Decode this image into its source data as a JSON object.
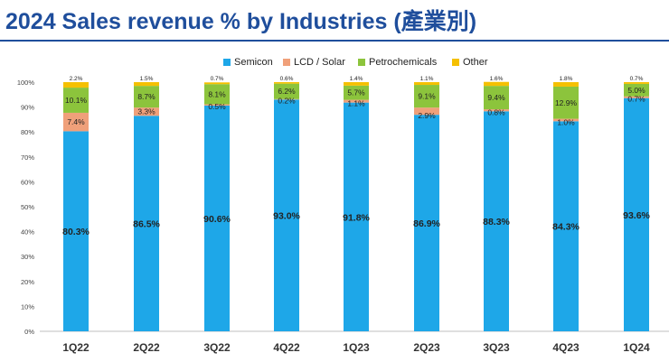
{
  "title": "2024 Sales revenue % by Industries (產業別)",
  "chart_data": {
    "type": "bar",
    "stacked": true,
    "categories": [
      "1Q22",
      "2Q22",
      "3Q22",
      "4Q22",
      "1Q23",
      "2Q23",
      "3Q23",
      "4Q23",
      "1Q24"
    ],
    "series": [
      {
        "name": "Semicon",
        "color": "#1ea7e8",
        "values": [
          80.3,
          86.5,
          90.6,
          93.0,
          91.8,
          86.9,
          88.3,
          84.3,
          93.6
        ],
        "labels": [
          "80.3%",
          "86.5%",
          "90.6%",
          "93.0%",
          "91.8%",
          "86.9%",
          "88.3%",
          "84.3%",
          "93.6%"
        ]
      },
      {
        "name": "LCD / Solar",
        "color": "#f0a07a",
        "values": [
          7.4,
          3.3,
          0.5,
          0.2,
          1.1,
          2.9,
          0.8,
          1.0,
          0.7
        ],
        "labels": [
          "7.4%",
          "3.3%",
          "0.5%",
          "0.2%",
          "1.1%",
          "2.9%",
          "0.8%",
          "1.0%",
          "0.7%"
        ]
      },
      {
        "name": "Petrochemicals",
        "color": "#8cc43c",
        "values": [
          10.1,
          8.7,
          8.1,
          6.2,
          5.7,
          9.1,
          9.4,
          12.9,
          5.0
        ],
        "labels": [
          "10.1%",
          "8.7%",
          "8.1%",
          "6.2%",
          "5.7%",
          "9.1%",
          "9.4%",
          "12.9%",
          "5.0%"
        ]
      },
      {
        "name": "Other",
        "color": "#f5c000",
        "values": [
          2.2,
          1.5,
          0.7,
          0.6,
          1.4,
          1.1,
          1.6,
          1.8,
          0.7
        ],
        "labels": [
          "2.2%",
          "1.5%",
          "0.7%",
          "0.6%",
          "1.4%",
          "1.1%",
          "1.6%",
          "1.8%",
          "0.7%"
        ]
      }
    ],
    "y_ticks": [
      "0%",
      "10%",
      "20%",
      "30%",
      "40%",
      "50%",
      "60%",
      "70%",
      "80%",
      "90%",
      "100%"
    ],
    "ylim": [
      0,
      100
    ],
    "legend_position": "top-center",
    "grid": false
  }
}
